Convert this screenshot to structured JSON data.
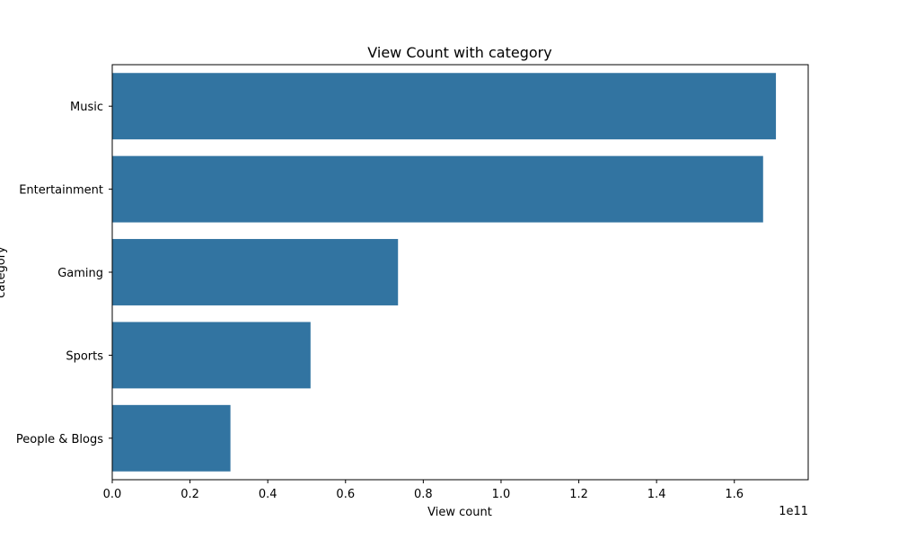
{
  "chart_data": {
    "type": "bar",
    "orientation": "horizontal",
    "title": "View Count with category",
    "xlabel": "View count",
    "ylabel": "category",
    "x_multiplier_label": "1e11",
    "categories": [
      "Music",
      "Entertainment",
      "Gaming",
      "Sports",
      "People & Blogs"
    ],
    "values": [
      170700000000.0,
      167400000000.0,
      73500000000.0,
      51000000000.0,
      30400000000.0
    ],
    "xlim": [
      0,
      179000000000.0
    ],
    "xticks": [
      0,
      20000000000.0,
      40000000000.0,
      60000000000.0,
      80000000000.0,
      100000000000.0,
      120000000000.0,
      140000000000.0,
      160000000000.0
    ],
    "xtick_labels": [
      "0.0",
      "0.2",
      "0.4",
      "0.6",
      "0.8",
      "1.0",
      "1.2",
      "1.4",
      "1.6"
    ],
    "bar_color": "#3274a1",
    "grid": false,
    "legend": "none"
  }
}
